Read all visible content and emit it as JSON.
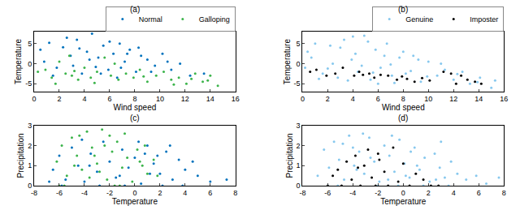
{
  "chart_data": [
    {
      "type": "scatter",
      "title": "(a)",
      "x_label": "Wind speed",
      "y_label": "Temperature",
      "xlim": [
        0,
        16
      ],
      "xticks": [
        0,
        2,
        4,
        6,
        8,
        10,
        12,
        14,
        16
      ],
      "ylim": [
        -7,
        8
      ],
      "yticks": [
        -5,
        0,
        5
      ],
      "grid": false,
      "legend": "top",
      "series": [
        {
          "name": "Normal",
          "color": "#0072bd",
          "x": [
            0.5,
            1.2,
            1.8,
            2.3,
            2.9,
            3.4,
            3.8,
            4.2,
            4.6,
            5.1,
            5.5,
            5.9,
            6.3,
            6.8,
            7.2,
            7.6,
            8.1,
            8.5,
            9.0,
            9.6,
            10.2,
            10.9,
            11.6,
            12.4,
            13.5,
            0.8,
            1.5,
            2.6,
            3.1,
            4.4,
            5.3,
            6.0,
            6.6,
            7.4,
            8.3,
            9.3,
            10.6,
            3.6,
            4.9,
            6.9
          ],
          "y": [
            3.5,
            5.2,
            -1.0,
            4.1,
            2.0,
            6.0,
            -2.5,
            3.0,
            7.5,
            1.5,
            4.5,
            -1.5,
            2.5,
            5.0,
            0.5,
            3.5,
            -2.0,
            2.0,
            1.0,
            -0.5,
            2.5,
            -1.5,
            0.0,
            -3.0,
            -2.5,
            0.5,
            -3.0,
            6.5,
            -0.5,
            1.0,
            -2.5,
            5.5,
            -3.5,
            2.5,
            4.0,
            -2.0,
            0.5,
            3.8,
            -0.8,
            -1.0
          ]
        },
        {
          "name": "Galloping",
          "color": "#3cb44b",
          "x": [
            0.3,
            0.9,
            1.4,
            2.0,
            2.5,
            3.0,
            3.5,
            4.0,
            4.5,
            5.0,
            5.6,
            6.1,
            6.7,
            7.3,
            7.9,
            8.4,
            9.0,
            9.7,
            10.3,
            10.9,
            11.5,
            12.1,
            12.8,
            13.4,
            14.0,
            14.6,
            1.7,
            3.2,
            4.8,
            6.4,
            8.7,
            11.1,
            12.5,
            13.8,
            2.8
          ],
          "y": [
            -2.0,
            -1.5,
            -3.5,
            0.5,
            -2.5,
            -3.0,
            -4.0,
            -1.0,
            -3.5,
            -2.0,
            1.5,
            -3.0,
            -4.0,
            -2.5,
            -3.5,
            -1.5,
            -4.5,
            -3.0,
            -2.0,
            -4.0,
            -3.5,
            -5.0,
            -2.5,
            -4.5,
            -3.0,
            -5.5,
            -5.0,
            -1.8,
            -4.8,
            0.0,
            -3.2,
            -5.2,
            -3.8,
            -4.2,
            2.0
          ]
        }
      ]
    },
    {
      "type": "scatter",
      "title": "(b)",
      "x_label": "Wind speed",
      "y_label": "Temperature",
      "xlim": [
        0,
        16
      ],
      "xticks": [
        0,
        2,
        4,
        6,
        8,
        10,
        12,
        14,
        16
      ],
      "ylim": [
        -7,
        8
      ],
      "yticks": [
        -5,
        0,
        5
      ],
      "grid": false,
      "legend": "top",
      "series": [
        {
          "name": "Genuine",
          "color": "#87c8ee",
          "x": [
            0.4,
            1.0,
            1.6,
            2.2,
            2.8,
            3.3,
            3.9,
            4.4,
            4.9,
            5.4,
            5.8,
            6.2,
            6.7,
            7.1,
            7.7,
            8.2,
            8.8,
            9.4,
            10.0,
            10.7,
            11.3,
            12.0,
            12.7,
            13.3,
            14.1,
            15.0,
            0.7,
            1.3,
            2.4,
            3.0,
            3.6,
            4.2,
            4.7,
            5.2,
            6.0,
            6.5,
            7.3,
            8.0,
            8.6,
            9.2,
            9.9,
            11.0,
            12.3,
            13.9,
            2.0,
            4.0,
            5.6,
            7.0,
            15.3,
            0.2
          ],
          "y": [
            3.0,
            5.0,
            -2.5,
            4.5,
            -3.5,
            6.0,
            1.0,
            -2.0,
            7.0,
            -4.0,
            3.5,
            -1.0,
            5.0,
            -3.0,
            1.5,
            -2.5,
            2.0,
            -4.5,
            0.5,
            -3.0,
            -1.5,
            -4.0,
            -2.0,
            -5.0,
            -3.5,
            -6.0,
            1.5,
            -3.8,
            0.0,
            4.0,
            -4.2,
            2.5,
            -0.5,
            5.5,
            -5.0,
            2.0,
            -4.8,
            3.0,
            -1.8,
            1.0,
            -3.2,
            0.0,
            -2.6,
            -4.6,
            -1.2,
            6.8,
            -2.2,
            -0.2,
            -4.2,
            -1.0
          ]
        },
        {
          "name": "Imposter",
          "color": "#000000",
          "x": [
            0.6,
            1.1,
            1.9,
            2.6,
            3.2,
            4.1,
            4.8,
            5.3,
            5.7,
            6.2,
            6.8,
            7.5,
            7.9,
            8.3,
            8.9,
            9.5,
            10.1,
            11.2,
            11.8,
            12.2,
            12.6,
            13.1,
            13.7,
            14.2,
            4.5
          ],
          "y": [
            -2.0,
            -1.5,
            -3.0,
            -2.5,
            -1.0,
            -3.0,
            -2.8,
            -2.5,
            -3.5,
            -2.8,
            -3.0,
            -4.0,
            -3.2,
            -3.8,
            -4.5,
            -3.6,
            -4.2,
            -2.0,
            -2.5,
            -5.0,
            -3.0,
            -4.0,
            -4.5,
            -5.0,
            -2.0
          ]
        }
      ]
    },
    {
      "type": "scatter",
      "title": "(c)",
      "x_label": "Temperature",
      "y_label": "Precipitation",
      "xlim": [
        -8,
        8
      ],
      "xticks": [
        -8,
        -6,
        -4,
        -2,
        0,
        2,
        4,
        6,
        8
      ],
      "ylim": [
        0,
        3
      ],
      "yticks": [
        0,
        1,
        2,
        3
      ],
      "grid": false,
      "series": [
        {
          "color": "#0072bd",
          "x": [
            -6.5,
            -6.0,
            -5.5,
            -5.0,
            -4.5,
            -4.0,
            -3.5,
            -3.0,
            -2.5,
            -2.0,
            -1.5,
            -1.0,
            -0.5,
            0.0,
            0.5,
            1.0,
            1.5,
            2.0,
            2.5,
            3.0,
            3.5,
            4.0,
            5.0,
            6.0,
            7.3,
            -5.8,
            -4.2,
            -2.8,
            -1.2,
            0.3,
            1.8,
            2.8,
            3.8,
            -3.6,
            -0.8,
            1.2,
            2.2,
            4.6,
            -6.8,
            0.8
          ],
          "y": [
            0.8,
            1.5,
            0.3,
            1.9,
            1.0,
            0.2,
            1.6,
            0.7,
            2.2,
            1.2,
            0.4,
            1.8,
            0.9,
            1.4,
            0.1,
            2.0,
            1.1,
            0.6,
            1.7,
            0.3,
            1.3,
            0.8,
            0.5,
            0.2,
            0.3,
            0.0,
            2.3,
            0.0,
            0.5,
            2.2,
            1.5,
            2.0,
            0.0,
            1.0,
            0.0,
            0.6,
            0.0,
            1.2,
            0.2,
            1.6
          ]
        },
        {
          "color": "#3cb44b",
          "x": [
            -6.2,
            -5.8,
            -5.4,
            -5.0,
            -4.6,
            -4.2,
            -3.8,
            -3.4,
            -3.0,
            -2.6,
            -2.2,
            -1.8,
            -1.4,
            -1.0,
            -0.6,
            -0.2,
            0.2,
            0.6,
            1.0,
            1.5,
            -5.6,
            -4.4,
            -3.6,
            -2.4,
            -1.6,
            -0.8,
            0.4,
            -3.2,
            -2.0,
            -4.8,
            -1.2,
            -2.8,
            -6.0,
            0.8,
            1.8
          ],
          "y": [
            1.2,
            2.0,
            0.5,
            2.4,
            1.5,
            0.8,
            2.7,
            1.9,
            1.1,
            2.8,
            0.3,
            1.7,
            2.2,
            0.9,
            1.4,
            0.2,
            1.8,
            1.0,
            0.6,
            1.3,
            0.0,
            2.5,
            0.4,
            2.0,
            0.0,
            2.6,
            1.2,
            1.5,
            2.5,
            1.0,
            0.0,
            0.7,
            0.0,
            2.0,
            0.5
          ]
        }
      ]
    },
    {
      "type": "scatter",
      "title": "(d)",
      "x_label": "Temperature",
      "y_label": "Precipitation",
      "xlim": [
        -8,
        8
      ],
      "xticks": [
        -8,
        -6,
        -4,
        -2,
        0,
        2,
        4,
        6,
        8
      ],
      "ylim": [
        0,
        3
      ],
      "yticks": [
        0,
        1,
        2,
        3
      ],
      "grid": false,
      "series": [
        {
          "color": "#87c8ee",
          "x": [
            -6.8,
            -6.3,
            -5.9,
            -5.5,
            -5.1,
            -4.7,
            -4.3,
            -3.9,
            -3.5,
            -3.1,
            -2.7,
            -2.3,
            -1.9,
            -1.5,
            -1.1,
            -0.7,
            -0.3,
            0.1,
            0.5,
            0.9,
            1.3,
            1.7,
            2.1,
            2.5,
            2.9,
            3.3,
            3.8,
            4.3,
            5.0,
            5.8,
            6.6,
            7.6,
            -6.0,
            -5.2,
            -4.0,
            -3.2,
            -2.0,
            -1.2,
            -0.4,
            0.6,
            1.6,
            2.6,
            3.6,
            -4.8,
            -2.6,
            -0.9,
            1.1,
            3.0,
            -3.7,
            0.2
          ],
          "y": [
            0.5,
            1.8,
            0.9,
            2.2,
            1.3,
            0.3,
            2.5,
            1.0,
            1.7,
            0.6,
            2.4,
            1.2,
            0.2,
            2.0,
            1.5,
            0.7,
            2.3,
            1.1,
            0.4,
            1.9,
            0.8,
            1.4,
            0.2,
            1.6,
            0.9,
            0.4,
            1.2,
            0.6,
            0.3,
            0.5,
            0.1,
            0.4,
            0.0,
            0.0,
            1.9,
            2.6,
            0.0,
            0.3,
            0.0,
            1.7,
            0.0,
            0.3,
            0.0,
            2.1,
            1.4,
            2.5,
            1.0,
            2.2,
            0.8,
            0.5
          ]
        },
        {
          "color": "#000000",
          "x": [
            -6.0,
            -5.6,
            -5.2,
            -4.9,
            -4.5,
            -4.1,
            -3.8,
            -3.4,
            -3.1,
            -2.8,
            -2.5,
            -2.2,
            -1.9,
            -1.5,
            -1.2,
            -0.8,
            -0.4,
            0.0,
            0.5,
            1.0,
            1.6,
            2.2,
            2.8,
            -3.6,
            -2.0
          ],
          "y": [
            0.0,
            0.5,
            0.8,
            0.0,
            1.2,
            0.3,
            1.5,
            0.0,
            1.0,
            1.8,
            0.4,
            0.0,
            1.3,
            0.7,
            0.0,
            1.9,
            0.2,
            1.1,
            0.0,
            0.6,
            0.3,
            0.0,
            0.0,
            0.9,
            1.6
          ]
        }
      ]
    }
  ]
}
